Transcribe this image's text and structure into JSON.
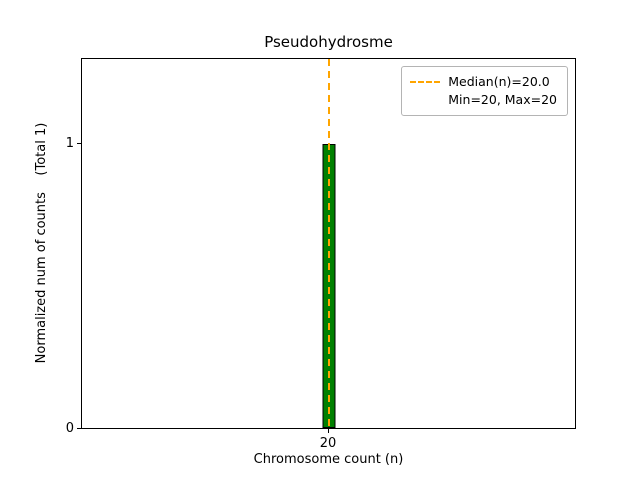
{
  "chart_data": {
    "type": "bar",
    "title": "Pseudohydrosme",
    "xlabel": "Chromosome count (n)",
    "ylabel": "Normalized num of counts    (Total 1)",
    "categories": [
      "20"
    ],
    "values": [
      1
    ],
    "total_counts": 1,
    "xticks": [
      "20"
    ],
    "yticks": [
      "0",
      "1"
    ],
    "ylim": [
      0,
      1.3
    ],
    "grid": false,
    "bar_color": "#008000",
    "bar_edge_color": "#000000",
    "median_line": {
      "value": 20.0,
      "color": "#ffa500",
      "style": "dashed"
    },
    "legend": {
      "position": "upper right",
      "entries": [
        {
          "label": "Median(n)=20.0",
          "swatch": "dashed-orange-line"
        },
        {
          "label": "Min=20, Max=20",
          "swatch": "none"
        }
      ]
    }
  }
}
